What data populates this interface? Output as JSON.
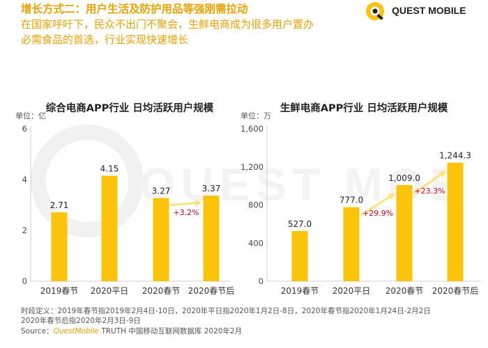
{
  "header": {
    "title": "增长方式二：用户生活及防护用品等强刚需拉动",
    "subtitle_line1": "在国家呼吁下，民众不出门不聚会，生鲜电商成为很多用户置办",
    "subtitle_line2": "必需食品的首选，行业实现快速增长"
  },
  "logo": {
    "text": "QUEST MOBILE"
  },
  "watermark": {
    "text": "QUEST MOBILE"
  },
  "colors": {
    "bar": "#fcc30b",
    "accent": "#e8a200",
    "growth": "#d0021b",
    "arrow": "#fde27a"
  },
  "chart_data": [
    {
      "type": "bar",
      "title": "综合电商APP行业 日均活跃用户规模",
      "unit": "单位：亿",
      "categories": [
        "2019春节",
        "2020平日",
        "2020春节",
        "2020春节后"
      ],
      "values": [
        2.71,
        4.15,
        3.27,
        3.37
      ],
      "value_labels": [
        "2.71",
        "4.15",
        "3.27",
        "3.37"
      ],
      "yticks": [
        "0",
        "2",
        "4",
        "6"
      ],
      "ylim": [
        0,
        6
      ],
      "annotations": [
        {
          "from": 2,
          "to": 3,
          "label": "+3.2%"
        }
      ]
    },
    {
      "type": "bar",
      "title": "生鲜电商APP行业 日均活跃用户规模",
      "unit": "单位：万",
      "categories": [
        "2019春节",
        "2020平日",
        "2020春节",
        "2020春节后"
      ],
      "values": [
        527.0,
        777.0,
        1009.0,
        1244.3
      ],
      "value_labels": [
        "527.0",
        "777.0",
        "1,009.0",
        "1,244.3"
      ],
      "yticks": [
        "0",
        "400",
        "800",
        "1,200",
        "1,600"
      ],
      "ylim": [
        0,
        1600
      ],
      "annotations": [
        {
          "from": 1,
          "to": 2,
          "label": "+29.9%"
        },
        {
          "from": 2,
          "to": 3,
          "label": "+23.3%"
        }
      ]
    }
  ],
  "footer": {
    "definition_line1": "时段定义：2019年春节指2019年2月4日-10日，2020年平日指2020年1月2日-8日，2020年春节指2020年1月24日-2月2日",
    "definition_line2": "2020年春节后指2020年2月3日-9日",
    "source_label": "Source：",
    "source_brand": "QuestMobile",
    "source_text": " TRUTH 中国移动互联网数据库 2020年2月"
  }
}
